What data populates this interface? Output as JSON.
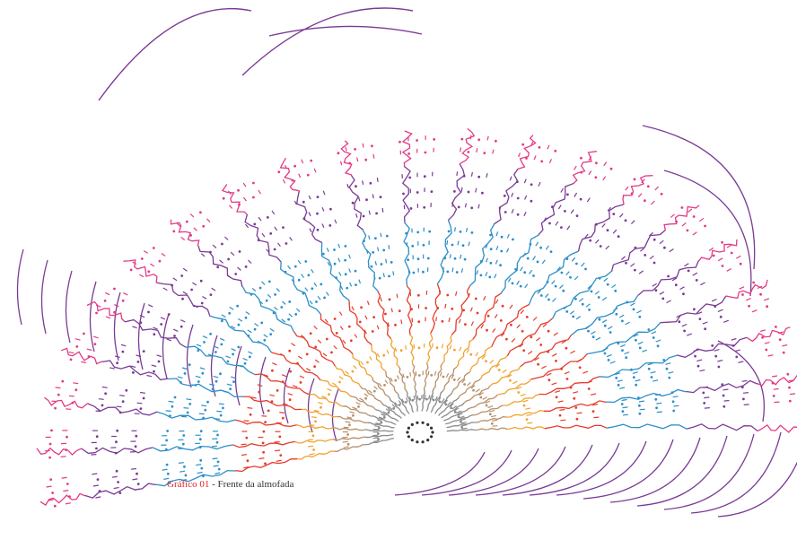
{
  "caption": {
    "label": "Gráfico 01",
    "separator": " - ",
    "description": "Frente da almofada"
  },
  "colors": {
    "caption_label": "#d9252a",
    "center": "#333333",
    "gray": "#8c8c8c",
    "tan": "#b8906a",
    "orange": "#f0a330",
    "red": "#e53c2c",
    "blue": "#2b8fc9",
    "purple": "#7a3b96",
    "pink": "#e33a86"
  },
  "diagram": {
    "type": "crochet-stitch-chart",
    "shape": "half-fan",
    "ring_colors": [
      "gray",
      "tan",
      "orange",
      "red",
      "blue",
      "purple",
      "pink"
    ]
  }
}
